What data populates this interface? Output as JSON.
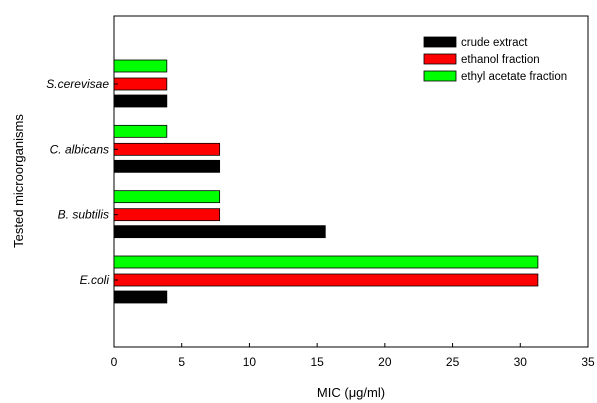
{
  "chart_data": {
    "type": "bar",
    "orientation": "horizontal",
    "title": "",
    "xlabel": "MIC (μg/ml)",
    "ylabel": "Tested microorganisms",
    "xlim": [
      0,
      35
    ],
    "xticks": [
      "0",
      "5",
      "10",
      "15",
      "20",
      "25",
      "30",
      "35"
    ],
    "grid": false,
    "legend_position": "top-right",
    "categories": [
      "E.coli",
      "B. subtilis",
      "C. albicans",
      "S.cerevisae"
    ],
    "series": [
      {
        "name": "crude extract",
        "color": "#000000",
        "values": [
          3.9,
          15.6,
          7.8,
          3.9
        ]
      },
      {
        "name": "ethanol fraction",
        "color": "#ff0000",
        "values": [
          31.3,
          7.8,
          7.8,
          3.9
        ]
      },
      {
        "name": "ethyl acetate fraction",
        "color": "#00ff00",
        "values": [
          31.3,
          7.8,
          3.9,
          3.9
        ]
      }
    ]
  }
}
